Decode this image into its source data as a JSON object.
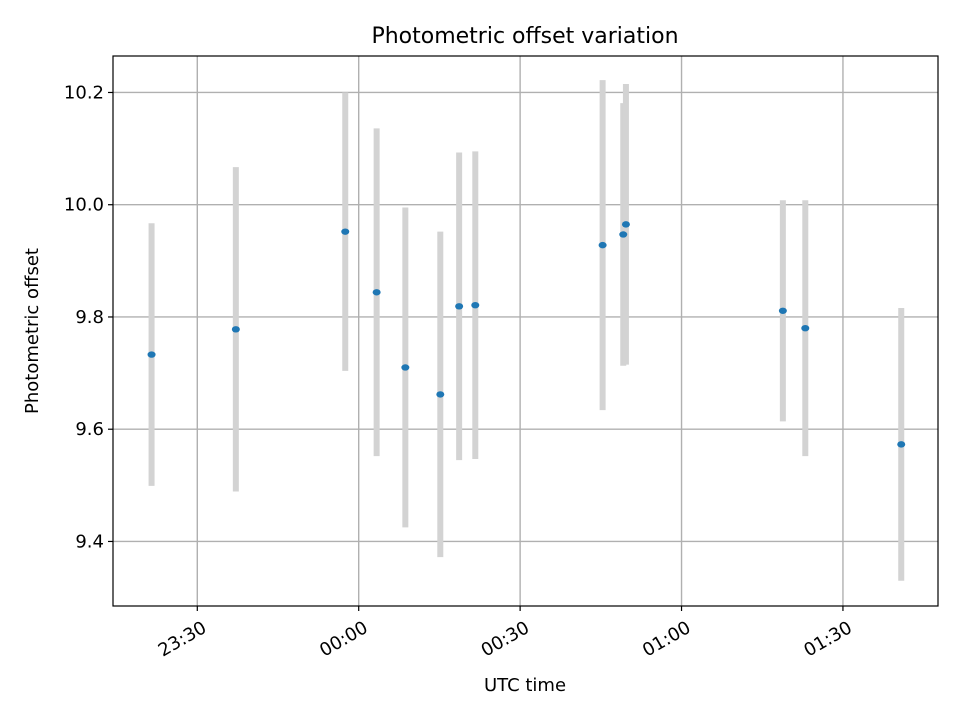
{
  "chart_data": {
    "type": "scatter",
    "title": "Photometric offset variation",
    "xlabel": "UTC time",
    "ylabel": "Photometric offset",
    "x_ticks": [
      "23:30",
      "00:00",
      "00:30",
      "01:00",
      "01:30"
    ],
    "y_ticks": [
      "9.4",
      "9.6",
      "9.8",
      "10.0",
      "10.2"
    ],
    "xlim": [
      "23:14:20",
      "01:47:40"
    ],
    "ylim": [
      9.285,
      10.265
    ],
    "grid": true,
    "colors": {
      "points": "#1f77b4",
      "errorbars": "#d3d3d3",
      "grid": "#b0b0b0"
    },
    "points": [
      {
        "x": "23:21:30",
        "y": 9.733,
        "yerr": 0.234
      },
      {
        "x": "23:37:10",
        "y": 9.778,
        "yerr": 0.289
      },
      {
        "x": "23:57:30",
        "y": 9.952,
        "yerr": 0.248
      },
      {
        "x": "00:03:20",
        "y": 9.844,
        "yerr": 0.292
      },
      {
        "x": "00:08:40",
        "y": 9.71,
        "yerr": 0.285
      },
      {
        "x": "00:15:10",
        "y": 9.662,
        "yerr": 0.29
      },
      {
        "x": "00:18:40",
        "y": 9.819,
        "yerr": 0.274
      },
      {
        "x": "00:21:40",
        "y": 9.821,
        "yerr": 0.274
      },
      {
        "x": "00:45:20",
        "y": 9.928,
        "yerr": 0.294
      },
      {
        "x": "00:49:10",
        "y": 9.947,
        "yerr": 0.234
      },
      {
        "x": "00:49:40",
        "y": 9.965,
        "yerr": 0.25
      },
      {
        "x": "01:18:50",
        "y": 9.811,
        "yerr": 0.197
      },
      {
        "x": "01:23:00",
        "y": 9.78,
        "yerr": 0.228
      },
      {
        "x": "01:40:50",
        "y": 9.573,
        "yerr": 0.243
      }
    ]
  }
}
